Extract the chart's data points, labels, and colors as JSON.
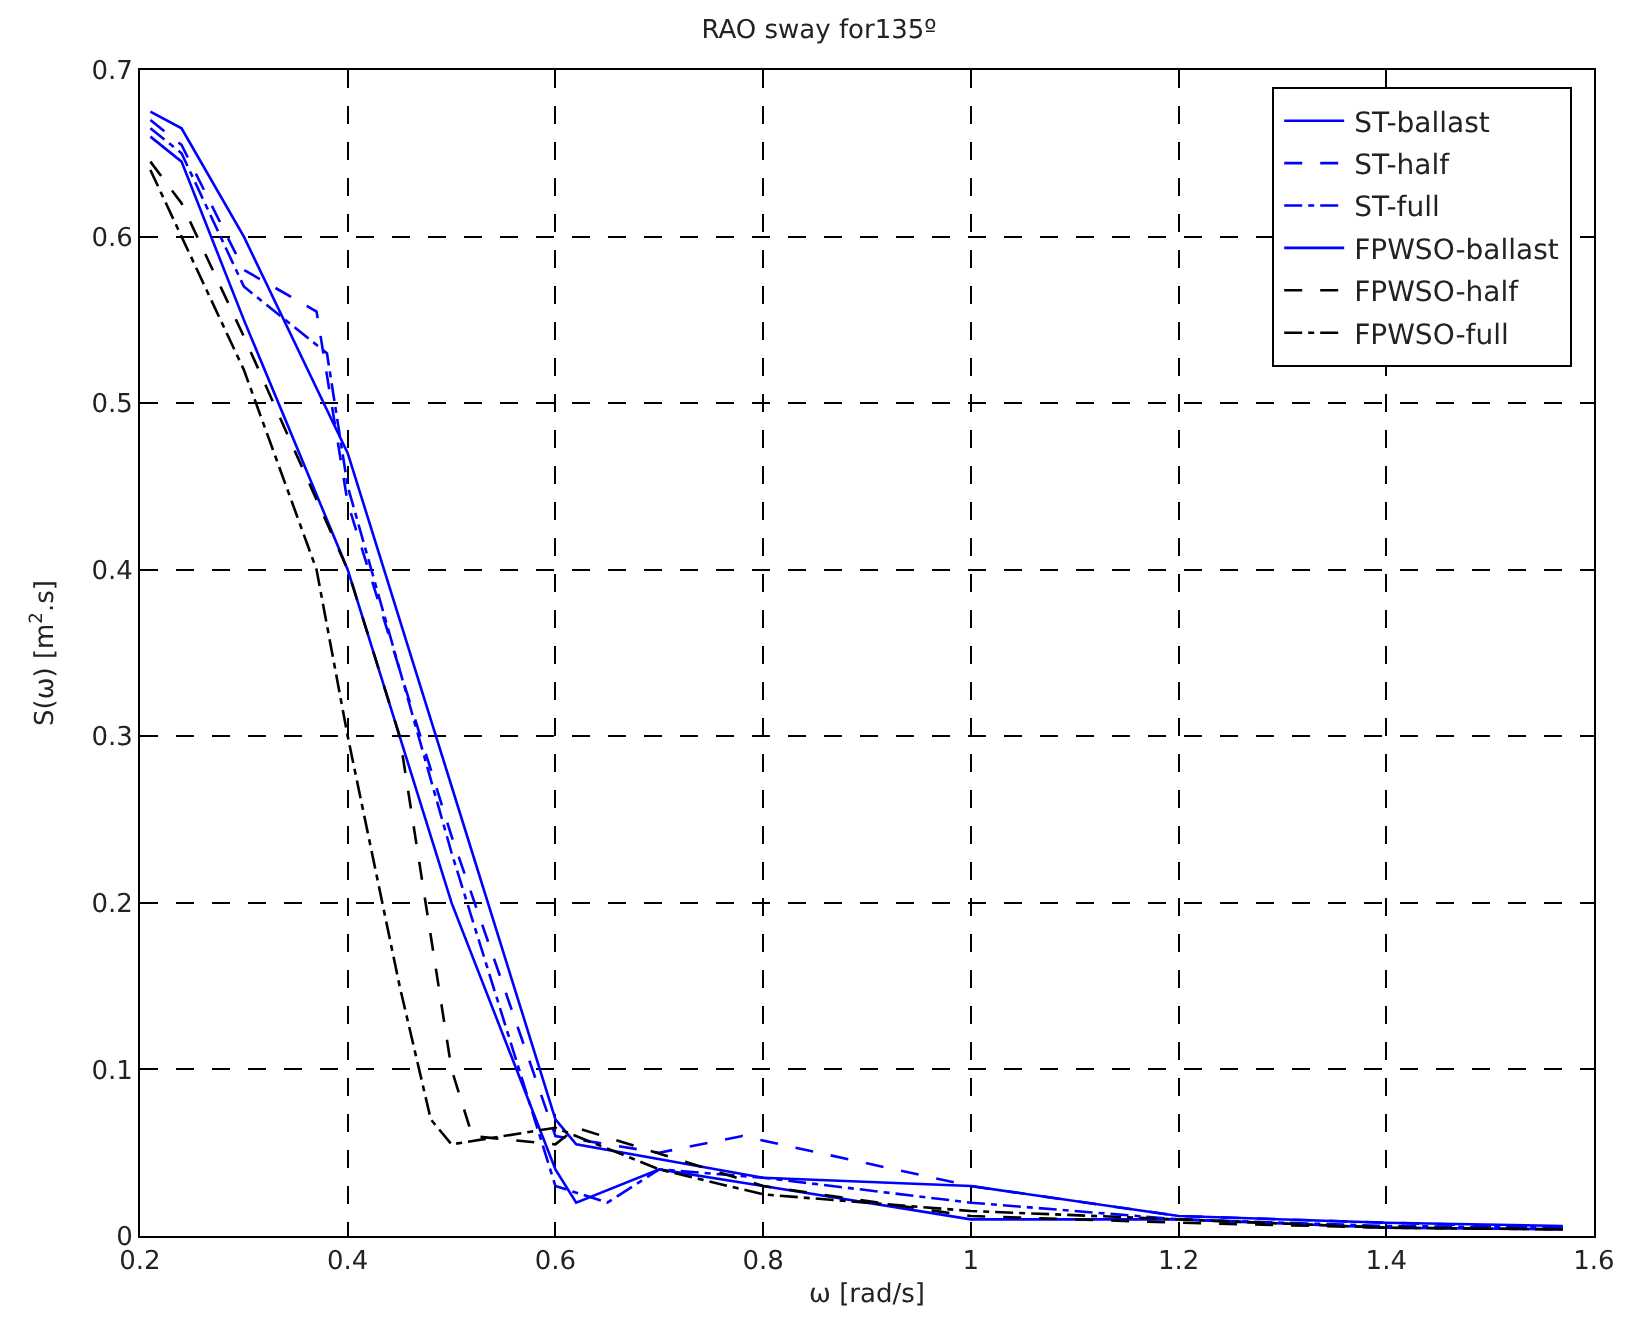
{
  "chart_data": {
    "type": "line",
    "title": "RAO sway for135º",
    "xlabel": "ω [rad/s]",
    "ylabel": "S(ω) [m$^{2}$.s]",
    "xlim": [
      0.2,
      1.6
    ],
    "xticks": [
      0.2,
      0.4,
      0.6,
      0.8,
      1,
      1.2,
      1.4,
      1.6
    ],
    "ylim": [
      0,
      0.7
    ],
    "yticks": [
      0,
      0.1,
      0.2,
      0.3,
      0.4,
      0.5,
      0.6,
      0.7
    ],
    "grid": true,
    "legend": "top right",
    "marker": "none",
    "series": [
      {
        "name": "ST-ballast",
        "color": "#0000ff",
        "line_style": "solid",
        "x": [
          0.21,
          0.24,
          0.3,
          0.4,
          0.5,
          0.6,
          0.62,
          0.8,
          1.0,
          1.2,
          1.4,
          1.57
        ],
        "values": [
          0.675,
          0.665,
          0.6,
          0.47,
          0.27,
          0.07,
          0.055,
          0.035,
          0.03,
          0.012,
          0.008,
          0.006
        ]
      },
      {
        "name": "ST-half",
        "color": "#0000ff",
        "line_style": "dashed",
        "x": [
          0.21,
          0.24,
          0.3,
          0.37,
          0.4,
          0.5,
          0.6,
          0.7,
          0.78,
          1.0,
          1.2,
          1.4,
          1.57
        ],
        "values": [
          0.67,
          0.655,
          0.58,
          0.555,
          0.44,
          0.24,
          0.06,
          0.05,
          0.06,
          0.03,
          0.012,
          0.008,
          0.005
        ]
      },
      {
        "name": "ST-full",
        "color": "#0000ff",
        "line_style": "dashdot",
        "x": [
          0.21,
          0.24,
          0.3,
          0.38,
          0.4,
          0.5,
          0.6,
          0.65,
          0.7,
          0.8,
          1.0,
          1.2,
          1.4,
          1.57
        ],
        "values": [
          0.665,
          0.65,
          0.57,
          0.53,
          0.45,
          0.23,
          0.03,
          0.02,
          0.04,
          0.035,
          0.02,
          0.01,
          0.006,
          0.005
        ]
      },
      {
        "name": "FPWSO-ballast",
        "color": "#0000ff",
        "line_style": "solid",
        "x": [
          0.21,
          0.24,
          0.3,
          0.4,
          0.5,
          0.6,
          0.62,
          0.7,
          0.8,
          1.0,
          1.2,
          1.4,
          1.57
        ],
        "values": [
          0.66,
          0.645,
          0.55,
          0.4,
          0.2,
          0.04,
          0.02,
          0.04,
          0.03,
          0.01,
          0.01,
          0.005,
          0.004
        ]
      },
      {
        "name": "FPWSO-half",
        "color": "#000000",
        "line_style": "dashed",
        "x": [
          0.21,
          0.24,
          0.3,
          0.4,
          0.45,
          0.5,
          0.52,
          0.6,
          0.62,
          0.8,
          1.0,
          1.2,
          1.4,
          1.57
        ],
        "values": [
          0.645,
          0.62,
          0.54,
          0.4,
          0.3,
          0.1,
          0.06,
          0.055,
          0.065,
          0.03,
          0.012,
          0.008,
          0.005,
          0.004
        ]
      },
      {
        "name": "FPWSO-full",
        "color": "#000000",
        "line_style": "dashdot",
        "x": [
          0.21,
          0.24,
          0.3,
          0.37,
          0.4,
          0.45,
          0.48,
          0.5,
          0.6,
          0.7,
          0.8,
          1.0,
          1.2,
          1.4,
          1.57
        ],
        "values": [
          0.64,
          0.6,
          0.52,
          0.4,
          0.3,
          0.15,
          0.07,
          0.055,
          0.065,
          0.04,
          0.025,
          0.015,
          0.01,
          0.005,
          0.004
        ]
      }
    ]
  }
}
